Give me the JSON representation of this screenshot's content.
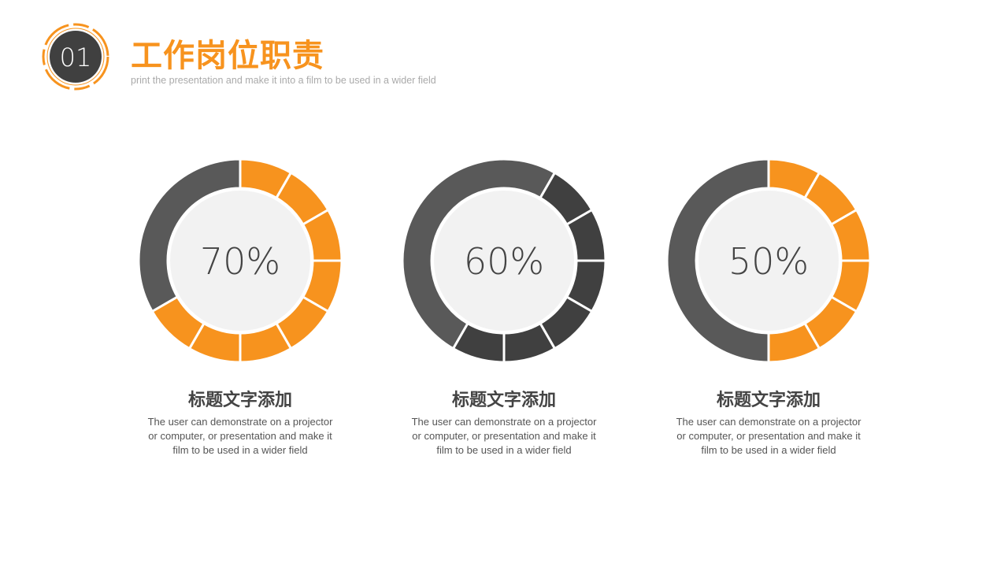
{
  "header": {
    "number": "01",
    "title": "工作岗位职责",
    "subtitle": "print the presentation and make it into a film to be used in a wider field"
  },
  "colors": {
    "accent": "#f7931e",
    "dark": "#404040",
    "gray": "#595959",
    "inner": "#f2f2f2"
  },
  "chart_data": [
    {
      "type": "donut",
      "value": 70,
      "label": "70%",
      "title": "标题文字添加",
      "description": "The user can demonstrate on a projector or computer, or presentation and make it film to be used in a wider field",
      "highlight_color": "#f7931e",
      "base_color": "#595959",
      "segments_start": 0,
      "segments_end": 8
    },
    {
      "type": "donut",
      "value": 60,
      "label": "60%",
      "title": "标题文字添加",
      "description": "The user can demonstrate on a projector or computer, or presentation and make it film to be used in a wider field",
      "highlight_color": "#404040",
      "base_color": "#595959",
      "segments_start": 1,
      "segments_end": 7
    },
    {
      "type": "donut",
      "value": 50,
      "label": "50%",
      "title": "标题文字添加",
      "description": "The user can demonstrate on a projector or computer, or presentation and make it film to be used in a wider field",
      "highlight_color": "#f7931e",
      "base_color": "#595959",
      "segments_start": 0,
      "segments_end": 6
    }
  ]
}
